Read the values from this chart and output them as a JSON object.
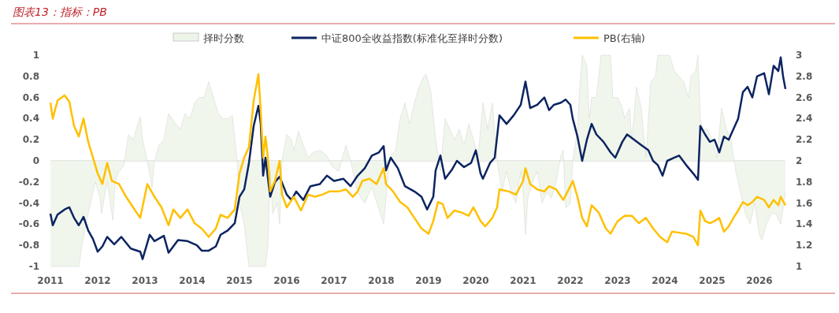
{
  "chart_data": {
    "type": "line",
    "title": "图表13：指标：PB",
    "xlim": [
      2011,
      2026.6
    ],
    "xticks": [
      2011,
      2012,
      2013,
      2014,
      2015,
      2016,
      2017,
      2018,
      2019,
      2020,
      2021,
      2022,
      2023,
      2024,
      2025,
      2026
    ],
    "ylim": [
      -1,
      1
    ],
    "yticks": [
      -1,
      -0.8,
      -0.6,
      -0.4,
      -0.2,
      0,
      0.2,
      0.4,
      0.6,
      0.8,
      1
    ],
    "y2lim": [
      1,
      3
    ],
    "y2ticks": [
      1,
      1.2,
      1.4,
      1.6,
      1.8,
      2,
      2.2,
      2.4,
      2.6,
      2.8,
      3
    ],
    "legend": "top",
    "series": [
      {
        "name": "择时分数",
        "type": "area",
        "color": "#edf5e8",
        "x": [
          2011.0,
          2011.6,
          2011.65,
          2011.75,
          2011.85,
          2011.95,
          2012.05,
          2012.08,
          2012.2,
          2012.32,
          2012.37,
          2012.45,
          2012.55,
          2012.65,
          2012.75,
          2012.85,
          2012.9,
          2012.95,
          2013.05,
          2013.15,
          2013.2,
          2013.3,
          2013.4,
          2013.5,
          2013.65,
          2013.75,
          2013.85,
          2013.95,
          2014.05,
          2014.15,
          2014.25,
          2014.35,
          2014.45,
          2014.55,
          2014.65,
          2014.75,
          2014.85,
          2014.95,
          2015.0,
          2015.1,
          2015.2,
          2015.55,
          2015.6,
          2015.65,
          2015.7,
          2015.8,
          2015.85,
          2015.9,
          2016.0,
          2016.1,
          2016.15,
          2016.25,
          2016.35,
          2016.45,
          2016.55,
          2016.7,
          2016.85,
          2016.95,
          2017.1,
          2017.25,
          2017.35,
          2017.5,
          2017.65,
          2017.8,
          2018.05,
          2018.15,
          2018.2,
          2018.3,
          2018.4,
          2018.5,
          2018.6,
          2018.7,
          2018.8,
          2018.9,
          2018.95,
          2019.05,
          2019.15,
          2019.25,
          2019.35,
          2019.45,
          2019.55,
          2019.65,
          2019.75,
          2019.85,
          2019.95,
          2020.05,
          2020.15,
          2020.25,
          2020.35,
          2020.45,
          2020.55,
          2020.65,
          2020.75,
          2020.85,
          2020.95,
          2021.0,
          2021.05,
          2021.1,
          2021.2,
          2021.3,
          2021.4,
          2021.5,
          2021.6,
          2021.7,
          2021.8,
          2021.85,
          2021.9,
          2022.0,
          2022.05,
          2022.15,
          2022.2,
          2022.25,
          2022.35,
          2022.4,
          2022.45,
          2022.55,
          2022.6,
          2022.65,
          2022.85,
          2022.9,
          2023.0,
          2023.1,
          2023.15,
          2023.25,
          2023.3,
          2023.4,
          2023.5,
          2023.55,
          2023.6,
          2023.7,
          2023.8,
          2023.85,
          2024.1,
          2024.2,
          2024.3,
          2024.4,
          2024.5,
          2024.55,
          2024.65,
          2024.7,
          2024.75,
          2024.8,
          2024.9,
          2025.0,
          2025.1,
          2025.2,
          2025.3,
          2025.4,
          2025.5,
          2025.6,
          2025.7,
          2025.8,
          2025.9,
          2026.0,
          2026.05,
          2026.15,
          2026.25,
          2026.35,
          2026.45,
          2026.5,
          2026.55
        ],
        "values": [
          -1,
          -1,
          -0.85,
          -0.6,
          -0.4,
          -0.2,
          -0.35,
          -0.5,
          -0.2,
          -0.56,
          -0.2,
          -0.1,
          -0.05,
          0.25,
          0.2,
          0.35,
          0.42,
          0.2,
          0,
          -0.25,
          0,
          0.15,
          0.2,
          0.45,
          0.35,
          0.3,
          0.45,
          0.4,
          0.55,
          0.6,
          0.6,
          0.75,
          0.6,
          0.45,
          0.4,
          0.4,
          0.43,
          0,
          -0.4,
          -0.6,
          -1,
          -1,
          -0.8,
          -0.1,
          -0.5,
          -0.4,
          -0.6,
          0,
          0.25,
          0.2,
          0.1,
          0.28,
          0.15,
          0.03,
          0.08,
          0.1,
          0.05,
          -0.05,
          -0.1,
          0.15,
          0,
          -0.3,
          -0.4,
          -0.25,
          -0.6,
          -0.1,
          0.05,
          0.1,
          0.4,
          0.55,
          0.35,
          0.55,
          0.7,
          0.8,
          0.82,
          0.65,
          0.2,
          -0.1,
          0.4,
          0.3,
          0.2,
          0.3,
          0.15,
          0.35,
          0.2,
          0.04,
          0.55,
          0.3,
          0.55,
          0,
          -0.3,
          -0.1,
          -0.3,
          -0.4,
          -0.1,
          -0.3,
          -0.7,
          -0.35,
          -0.2,
          -0.1,
          -0.4,
          -0.3,
          -0.35,
          -0.2,
          0.05,
          0.1,
          -0.45,
          -0.4,
          0,
          0.3,
          0.7,
          1,
          0.9,
          0.4,
          0.6,
          0.6,
          0.8,
          1,
          1,
          0.6,
          0.6,
          0.5,
          0.4,
          0.5,
          0.2,
          0.7,
          0.5,
          0.25,
          0.04,
          0.75,
          0.8,
          1,
          1,
          0.85,
          0.8,
          0.75,
          0.6,
          0.8,
          0.85,
          1,
          0.4,
          0.3,
          0.3,
          0.2,
          0.03,
          0.5,
          0.3,
          0.2,
          -0.1,
          -0.3,
          -0.5,
          -0.6,
          -0.4,
          -0.7,
          -0.75,
          -0.6,
          -0.5,
          -0.5,
          -0.6,
          -0.45,
          -0.3
        ]
      },
      {
        "name": "中证800全收益指数(标准化至择时分数)",
        "type": "line",
        "color": "#0c2461",
        "x": [
          2011.0,
          2011.05,
          2011.15,
          2011.3,
          2011.4,
          2011.5,
          2011.6,
          2011.7,
          2011.8,
          2011.9,
          2012.0,
          2012.1,
          2012.2,
          2012.35,
          2012.5,
          2012.7,
          2012.9,
          2012.95,
          2013.1,
          2013.2,
          2013.4,
          2013.5,
          2013.7,
          2013.9,
          2014.1,
          2014.2,
          2014.35,
          2014.5,
          2014.6,
          2014.75,
          2014.9,
          2015.0,
          2015.1,
          2015.2,
          2015.3,
          2015.4,
          2015.45,
          2015.5,
          2015.55,
          2015.65,
          2015.75,
          2015.85,
          2016.0,
          2016.1,
          2016.2,
          2016.35,
          2016.5,
          2016.7,
          2016.85,
          2017.0,
          2017.2,
          2017.35,
          2017.5,
          2017.65,
          2017.8,
          2017.95,
          2018.05,
          2018.1,
          2018.2,
          2018.35,
          2018.5,
          2018.7,
          2018.85,
          2018.97,
          2019.1,
          2019.15,
          2019.25,
          2019.35,
          2019.5,
          2019.6,
          2019.75,
          2019.9,
          2020.0,
          2020.1,
          2020.15,
          2020.3,
          2020.4,
          2020.5,
          2020.65,
          2020.8,
          2020.95,
          2021.05,
          2021.15,
          2021.3,
          2021.45,
          2021.55,
          2021.65,
          2021.8,
          2021.9,
          2022.0,
          2022.05,
          2022.15,
          2022.25,
          2022.35,
          2022.45,
          2022.55,
          2022.7,
          2022.85,
          2022.95,
          2023.1,
          2023.2,
          2023.35,
          2023.5,
          2023.65,
          2023.75,
          2023.85,
          2023.95,
          2024.05,
          2024.2,
          2024.3,
          2024.45,
          2024.6,
          2024.7,
          2024.75,
          2024.85,
          2024.95,
          2025.05,
          2025.15,
          2025.25,
          2025.35,
          2025.45,
          2025.55,
          2025.65,
          2025.75,
          2025.85,
          2025.95,
          2026.1,
          2026.2,
          2026.3,
          2026.4,
          2026.45,
          2026.5,
          2026.55
        ],
        "values": [
          -0.5,
          -0.61,
          -0.51,
          -0.46,
          -0.44,
          -0.54,
          -0.61,
          -0.53,
          -0.66,
          -0.74,
          -0.86,
          -0.81,
          -0.72,
          -0.79,
          -0.72,
          -0.83,
          -0.86,
          -0.93,
          -0.7,
          -0.76,
          -0.71,
          -0.87,
          -0.75,
          -0.76,
          -0.8,
          -0.85,
          -0.85,
          -0.81,
          -0.7,
          -0.66,
          -0.59,
          -0.34,
          -0.27,
          -0.02,
          0.33,
          0.52,
          0.35,
          -0.14,
          0.03,
          -0.34,
          -0.2,
          -0.15,
          -0.32,
          -0.37,
          -0.29,
          -0.37,
          -0.24,
          -0.22,
          -0.14,
          -0.19,
          -0.17,
          -0.24,
          -0.14,
          -0.07,
          0.05,
          0.08,
          0.14,
          -0.09,
          0.03,
          -0.07,
          -0.24,
          -0.29,
          -0.34,
          -0.46,
          -0.34,
          -0.09,
          0.05,
          -0.17,
          -0.08,
          0,
          -0.06,
          -0.02,
          0.1,
          -0.12,
          -0.17,
          -0.02,
          0.03,
          0.43,
          0.35,
          0.43,
          0.53,
          0.75,
          0.5,
          0.53,
          0.6,
          0.48,
          0.53,
          0.55,
          0.58,
          0.53,
          0.4,
          0.23,
          0,
          0.2,
          0.35,
          0.25,
          0.18,
          0.08,
          0.03,
          0.18,
          0.25,
          0.2,
          0.15,
          0.1,
          0,
          -0.04,
          -0.14,
          0,
          0.03,
          0.05,
          -0.04,
          -0.12,
          -0.18,
          0.33,
          0.25,
          0.18,
          0.2,
          0.08,
          0.23,
          0.2,
          0.3,
          0.4,
          0.65,
          0.7,
          0.6,
          0.8,
          0.83,
          0.63,
          0.9,
          0.85,
          0.98,
          0.8,
          0.68
        ]
      },
      {
        "name": "PB(右轴)",
        "type": "line",
        "axis": "y2",
        "color": "#ffc000",
        "x": [
          2011.0,
          2011.05,
          2011.15,
          2011.3,
          2011.4,
          2011.5,
          2011.6,
          2011.7,
          2011.8,
          2011.9,
          2012.0,
          2012.1,
          2012.2,
          2012.3,
          2012.45,
          2012.6,
          2012.75,
          2012.9,
          2013.05,
          2013.2,
          2013.35,
          2013.5,
          2013.6,
          2013.75,
          2013.9,
          2014.05,
          2014.2,
          2014.35,
          2014.5,
          2014.6,
          2014.75,
          2014.9,
          2015.0,
          2015.1,
          2015.2,
          2015.3,
          2015.4,
          2015.45,
          2015.5,
          2015.55,
          2015.6,
          2015.65,
          2015.75,
          2015.85,
          2015.9,
          2016.0,
          2016.15,
          2016.3,
          2016.45,
          2016.6,
          2016.75,
          2016.9,
          2017.1,
          2017.25,
          2017.4,
          2017.5,
          2017.6,
          2017.75,
          2017.9,
          2018.05,
          2018.1,
          2018.25,
          2018.4,
          2018.55,
          2018.7,
          2018.85,
          2019.0,
          2019.1,
          2019.2,
          2019.3,
          2019.4,
          2019.55,
          2019.7,
          2019.85,
          2019.95,
          2020.1,
          2020.2,
          2020.35,
          2020.45,
          2020.5,
          2020.7,
          2020.85,
          2021.0,
          2021.05,
          2021.15,
          2021.3,
          2021.45,
          2021.55,
          2021.7,
          2021.85,
          2022.0,
          2022.05,
          2022.15,
          2022.25,
          2022.35,
          2022.45,
          2022.6,
          2022.75,
          2022.85,
          2023.0,
          2023.15,
          2023.3,
          2023.45,
          2023.6,
          2023.75,
          2023.9,
          2024.05,
          2024.15,
          2024.3,
          2024.45,
          2024.6,
          2024.7,
          2024.75,
          2024.85,
          2024.95,
          2025.05,
          2025.15,
          2025.25,
          2025.35,
          2025.45,
          2025.55,
          2025.65,
          2025.75,
          2025.85,
          2025.95,
          2026.1,
          2026.2,
          2026.3,
          2026.4,
          2026.45,
          2026.55
        ],
        "values": [
          2.55,
          2.4,
          2.57,
          2.62,
          2.56,
          2.33,
          2.23,
          2.4,
          2.18,
          2.03,
          1.88,
          1.78,
          1.98,
          1.81,
          1.78,
          1.66,
          1.56,
          1.46,
          1.78,
          1.66,
          1.56,
          1.39,
          1.54,
          1.46,
          1.54,
          1.41,
          1.36,
          1.28,
          1.36,
          1.49,
          1.46,
          1.54,
          1.88,
          2.03,
          2.13,
          2.57,
          2.82,
          2.47,
          2.03,
          2.23,
          2.03,
          1.71,
          1.81,
          2,
          1.68,
          1.56,
          1.66,
          1.53,
          1.68,
          1.66,
          1.68,
          1.71,
          1.71,
          1.73,
          1.66,
          1.71,
          1.81,
          1.83,
          1.78,
          1.93,
          1.78,
          1.71,
          1.61,
          1.56,
          1.46,
          1.36,
          1.31,
          1.43,
          1.61,
          1.59,
          1.46,
          1.53,
          1.51,
          1.48,
          1.56,
          1.43,
          1.38,
          1.46,
          1.56,
          1.73,
          1.71,
          1.68,
          1.81,
          1.93,
          1.78,
          1.73,
          1.71,
          1.76,
          1.73,
          1.63,
          1.76,
          1.81,
          1.66,
          1.46,
          1.38,
          1.58,
          1.51,
          1.36,
          1.31,
          1.43,
          1.48,
          1.48,
          1.41,
          1.46,
          1.36,
          1.28,
          1.23,
          1.33,
          1.32,
          1.31,
          1.28,
          1.2,
          1.53,
          1.43,
          1.41,
          1.43,
          1.46,
          1.33,
          1.38,
          1.46,
          1.53,
          1.61,
          1.58,
          1.61,
          1.66,
          1.63,
          1.56,
          1.63,
          1.58,
          1.66,
          1.58
        ]
      }
    ]
  }
}
